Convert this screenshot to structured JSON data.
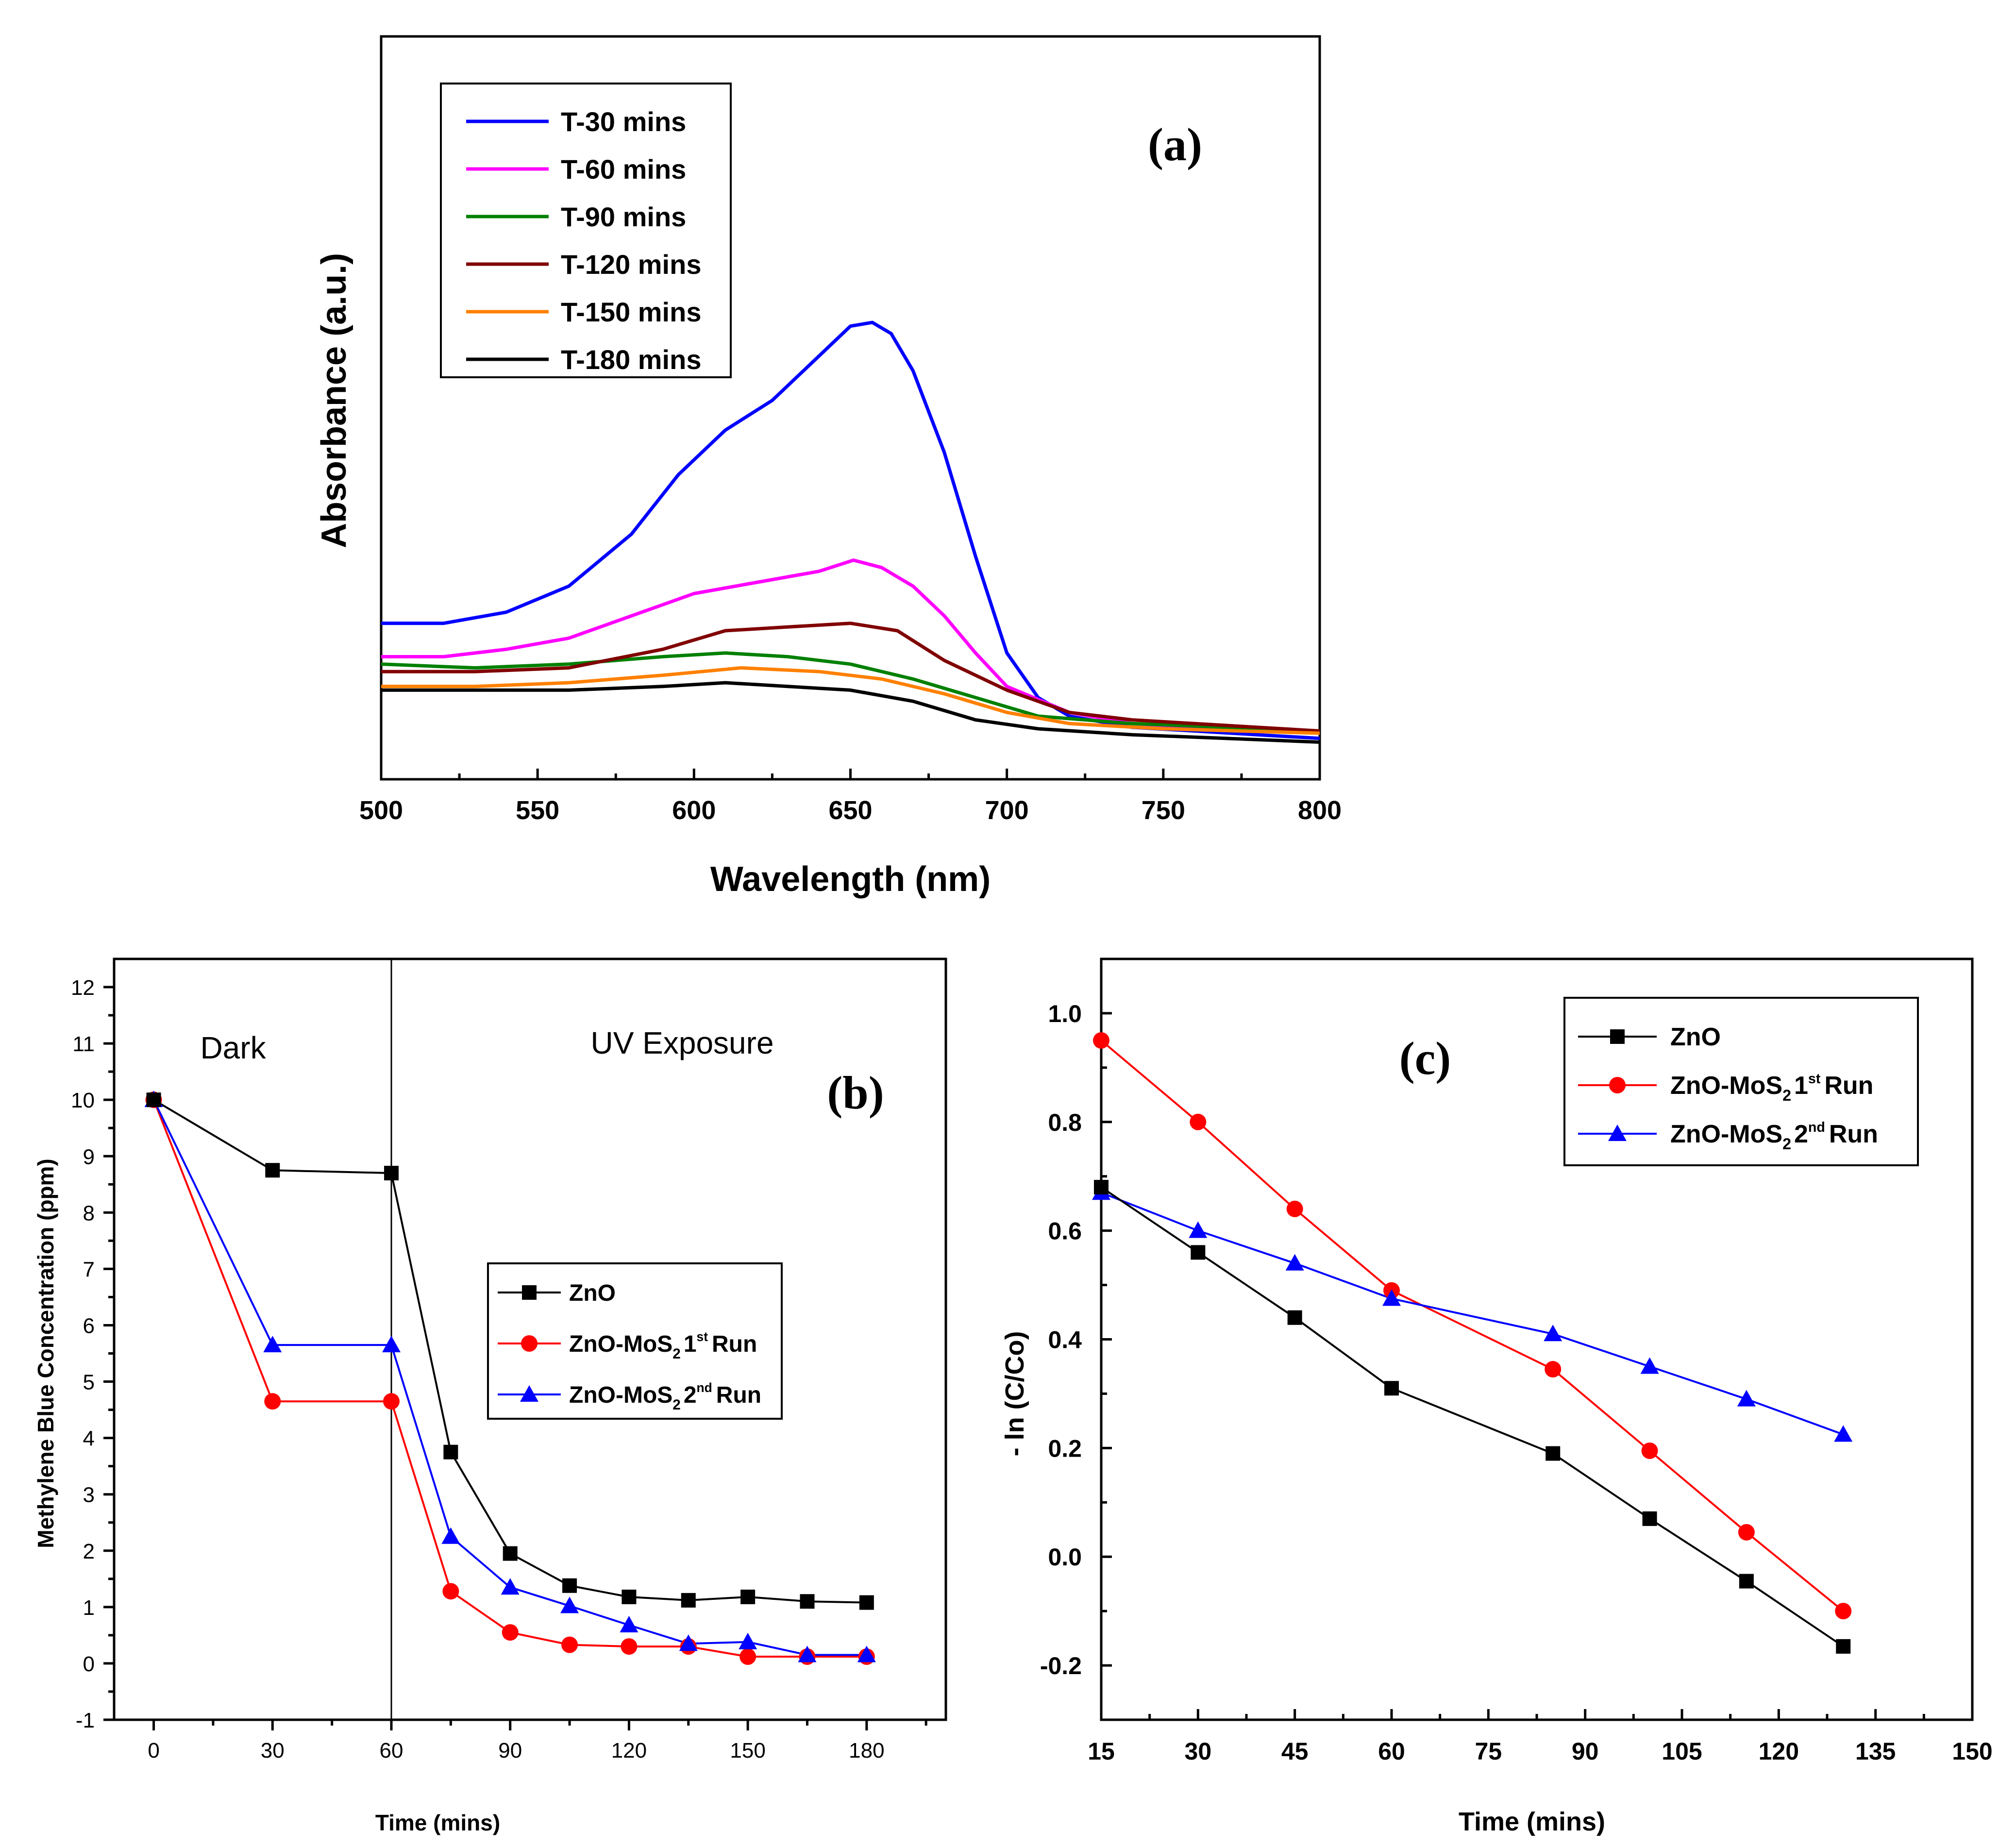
{
  "chart_data": [
    {
      "type": "line",
      "panel_label": "(a)",
      "xlabel": "Wavelength (nm)",
      "ylabel": "Absorbance (a.u.)",
      "xlim": [
        500,
        800
      ],
      "ylim": [
        0,
        1
      ],
      "xticks": [
        "500",
        "550",
        "600",
        "650",
        "700",
        "750",
        "800"
      ],
      "legend": "top-left",
      "series": [
        {
          "name": "T-30 mins",
          "color": "#0000ff",
          "x": [
            500,
            520,
            540,
            560,
            580,
            595,
            610,
            625,
            640,
            650,
            657,
            663,
            670,
            680,
            690,
            700,
            710,
            720,
            740,
            760,
            780,
            800
          ],
          "y": [
            0.21,
            0.21,
            0.225,
            0.26,
            0.33,
            0.41,
            0.47,
            0.51,
            0.57,
            0.61,
            0.615,
            0.6,
            0.55,
            0.44,
            0.3,
            0.17,
            0.11,
            0.085,
            0.07,
            0.065,
            0.06,
            0.055
          ]
        },
        {
          "name": "T-60 mins",
          "color": "#ff00ff",
          "x": [
            500,
            520,
            540,
            560,
            580,
            600,
            620,
            640,
            651,
            660,
            670,
            680,
            690,
            700,
            720,
            740,
            760,
            800
          ],
          "y": [
            0.165,
            0.165,
            0.175,
            0.19,
            0.22,
            0.25,
            0.265,
            0.28,
            0.295,
            0.285,
            0.26,
            0.22,
            0.17,
            0.125,
            0.09,
            0.075,
            0.07,
            0.065
          ]
        },
        {
          "name": "T-90 mins",
          "color": "#008000",
          "x": [
            500,
            530,
            560,
            590,
            610,
            630,
            650,
            670,
            690,
            710,
            740,
            800
          ],
          "y": [
            0.155,
            0.15,
            0.155,
            0.165,
            0.17,
            0.165,
            0.155,
            0.135,
            0.11,
            0.085,
            0.075,
            0.065
          ]
        },
        {
          "name": "T-120 mins",
          "color": "#800000",
          "x": [
            500,
            530,
            560,
            590,
            610,
            630,
            650,
            665,
            680,
            700,
            720,
            740,
            760,
            800
          ],
          "y": [
            0.145,
            0.145,
            0.15,
            0.175,
            0.2,
            0.205,
            0.21,
            0.2,
            0.16,
            0.12,
            0.09,
            0.08,
            0.075,
            0.065
          ]
        },
        {
          "name": "T-150 mins",
          "color": "#ff8000",
          "x": [
            500,
            530,
            560,
            590,
            615,
            640,
            660,
            680,
            700,
            720,
            750,
            800
          ],
          "y": [
            0.125,
            0.125,
            0.13,
            0.14,
            0.15,
            0.145,
            0.135,
            0.115,
            0.09,
            0.075,
            0.068,
            0.062
          ]
        },
        {
          "name": "T-180 mins",
          "color": "#000000",
          "x": [
            500,
            530,
            560,
            590,
            610,
            630,
            650,
            670,
            690,
            710,
            740,
            770,
            800
          ],
          "y": [
            0.12,
            0.12,
            0.12,
            0.125,
            0.13,
            0.125,
            0.12,
            0.105,
            0.08,
            0.068,
            0.06,
            0.055,
            0.05
          ]
        }
      ]
    },
    {
      "type": "line",
      "panel_label": "(b)",
      "xlabel": "Time (mins)",
      "ylabel": "Methylene Blue Concentration (ppm)",
      "xlim": [
        -10,
        200
      ],
      "ylim": [
        -1,
        12.5
      ],
      "xticks": [
        "0",
        "30",
        "60",
        "90",
        "120",
        "150",
        "180"
      ],
      "yticks": [
        "-1",
        "0",
        "1",
        "2",
        "3",
        "4",
        "5",
        "6",
        "7",
        "8",
        "9",
        "10",
        "11",
        "12"
      ],
      "annotations": {
        "dark": "Dark",
        "uv": "UV Exposure"
      },
      "divider_x": 60,
      "legend": "center-right",
      "series": [
        {
          "name": "ZnO",
          "color": "#000000",
          "marker": "square",
          "x": [
            0,
            30,
            60,
            75,
            90,
            105,
            120,
            135,
            150,
            165,
            180
          ],
          "y": [
            10,
            8.75,
            8.7,
            3.75,
            1.95,
            1.38,
            1.18,
            1.12,
            1.18,
            1.1,
            1.08
          ]
        },
        {
          "name": "ZnO-MoS",
          "sub": "2",
          "num": "1",
          "sup": "st",
          "suffix": "Run",
          "color": "#ff0000",
          "marker": "circle",
          "x": [
            0,
            30,
            60,
            75,
            90,
            105,
            120,
            135,
            150,
            165,
            180
          ],
          "y": [
            10,
            4.65,
            4.65,
            1.28,
            0.55,
            0.33,
            0.3,
            0.3,
            0.12,
            0.12,
            0.12
          ]
        },
        {
          "name": "ZnO-MoS",
          "sub": "2",
          "num": "2",
          "sup": "nd",
          "suffix": "Run",
          "color": "#0000ff",
          "marker": "triangle",
          "x": [
            0,
            30,
            60,
            75,
            90,
            105,
            120,
            135,
            150,
            165,
            180
          ],
          "y": [
            10,
            5.65,
            5.65,
            2.25,
            1.35,
            1.02,
            0.68,
            0.35,
            0.38,
            0.15,
            0.15
          ]
        }
      ]
    },
    {
      "type": "line",
      "panel_label": "(c)",
      "xlabel": "Time (mins)",
      "ylabel": "- ln (C/Co)",
      "xlim": [
        15,
        150
      ],
      "ylim": [
        -0.3,
        1.1
      ],
      "xticks": [
        "15",
        "30",
        "45",
        "60",
        "75",
        "90",
        "105",
        "120",
        "135",
        "150"
      ],
      "yticks": [
        "-0.2",
        "0.0",
        "0.2",
        "0.4",
        "0.6",
        "0.8",
        "1.0"
      ],
      "legend": "top-right",
      "series": [
        {
          "name": "ZnO",
          "color": "#000000",
          "marker": "square",
          "x": [
            15,
            30,
            45,
            60,
            85,
            100,
            115,
            130
          ],
          "y": [
            0.68,
            0.56,
            0.44,
            0.31,
            0.19,
            0.07,
            -0.045,
            -0.165
          ]
        },
        {
          "name": "ZnO-MoS",
          "sub": "2",
          "num": "1",
          "sup": "st",
          "suffix": "Run",
          "color": "#ff0000",
          "marker": "circle",
          "x": [
            15,
            30,
            45,
            60,
            85,
            100,
            115,
            130
          ],
          "y": [
            0.95,
            0.8,
            0.64,
            0.49,
            0.345,
            0.195,
            0.045,
            -0.1
          ]
        },
        {
          "name": "ZnO-MoS",
          "sub": "2",
          "num": "2",
          "sup": "nd",
          "suffix": "Run",
          "color": "#0000ff",
          "marker": "triangle",
          "x": [
            15,
            30,
            45,
            60,
            85,
            100,
            115,
            130
          ],
          "y": [
            0.67,
            0.6,
            0.54,
            0.475,
            0.41,
            0.35,
            0.29,
            0.225
          ]
        }
      ]
    }
  ]
}
